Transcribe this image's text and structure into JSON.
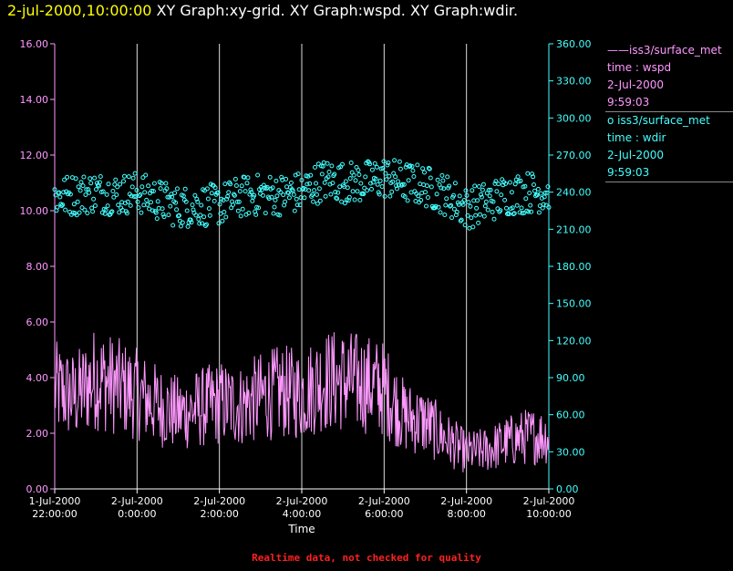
{
  "title": {
    "timestamp": "2-jul-2000,10:00:00",
    "graphs": "XY Graph:xy-grid.  XY Graph:wspd.  XY Graph:wdir."
  },
  "footer": "Realtime data, not checked for quality",
  "legend": [
    {
      "symbol": "——",
      "name": "iss3/surface_met",
      "field": "time : wspd",
      "date": "2-Jul-2000",
      "time": "9:59:03",
      "color": "#ff99ff"
    },
    {
      "symbol": "o",
      "name": "iss3/surface_met",
      "field": "time : wdir",
      "date": "2-Jul-2000",
      "time": "9:59:03",
      "color": "#44ffff"
    }
  ],
  "chart_data": {
    "type": "line",
    "xlabel": "Time",
    "x_ticks": [
      {
        "line1": "1-Jul-2000",
        "line2": "22:00:00"
      },
      {
        "line1": "2-Jul-2000",
        "line2": "0:00:00"
      },
      {
        "line1": "2-Jul-2000",
        "line2": "2:00:00"
      },
      {
        "line1": "2-Jul-2000",
        "line2": "4:00:00"
      },
      {
        "line1": "2-Jul-2000",
        "line2": "6:00:00"
      },
      {
        "line1": "2-Jul-2000",
        "line2": "8:00:00"
      },
      {
        "line1": "2-Jul-2000",
        "line2": "10:00:00"
      }
    ],
    "xlim_hours": [
      22,
      34
    ],
    "y_left": {
      "ticks": [
        "0.00",
        "2.00",
        "4.00",
        "6.00",
        "8.00",
        "10.00",
        "12.00",
        "14.00",
        "16.00"
      ],
      "lim": [
        0,
        16
      ],
      "color": "#ff99ff"
    },
    "y_right": {
      "ticks": [
        "0.00",
        "30.00",
        "60.00",
        "90.00",
        "120.00",
        "150.00",
        "180.00",
        "210.00",
        "240.00",
        "270.00",
        "300.00",
        "330.00",
        "360.00"
      ],
      "lim": [
        0,
        360
      ],
      "color": "#44ffff"
    },
    "grid": "vertical",
    "series": [
      {
        "name": "iss3/surface_met time : wspd",
        "axis": "left",
        "style": "line",
        "color": "#ff99ff",
        "x": [
          22.0,
          22.5,
          23.0,
          23.5,
          24.0,
          24.5,
          25.0,
          25.5,
          26.0,
          26.5,
          27.0,
          27.5,
          28.0,
          28.5,
          29.0,
          29.5,
          30.0,
          30.5,
          31.0,
          31.5,
          32.0,
          32.5,
          33.0,
          33.5,
          34.0
        ],
        "y": [
          3.6,
          3.3,
          4.0,
          3.7,
          3.4,
          3.0,
          2.7,
          2.9,
          3.1,
          3.0,
          3.3,
          3.5,
          3.4,
          3.9,
          3.9,
          3.8,
          3.6,
          2.6,
          2.4,
          1.8,
          1.3,
          1.4,
          1.7,
          1.9,
          1.9
        ]
      },
      {
        "name": "iss3/surface_met time : wdir",
        "axis": "right",
        "style": "scatter",
        "color": "#44ffff",
        "x": [
          22.0,
          22.5,
          23.0,
          23.5,
          24.0,
          24.5,
          25.0,
          25.5,
          26.0,
          26.5,
          27.0,
          27.5,
          28.0,
          28.5,
          29.0,
          29.5,
          30.0,
          30.5,
          31.0,
          31.5,
          32.0,
          32.5,
          33.0,
          33.5,
          34.0
        ],
        "y": [
          236,
          238,
          240,
          238,
          240,
          234,
          228,
          229,
          230,
          236,
          238,
          238,
          240,
          250,
          248,
          248,
          252,
          248,
          245,
          238,
          227,
          232,
          238,
          240,
          240
        ]
      }
    ]
  }
}
